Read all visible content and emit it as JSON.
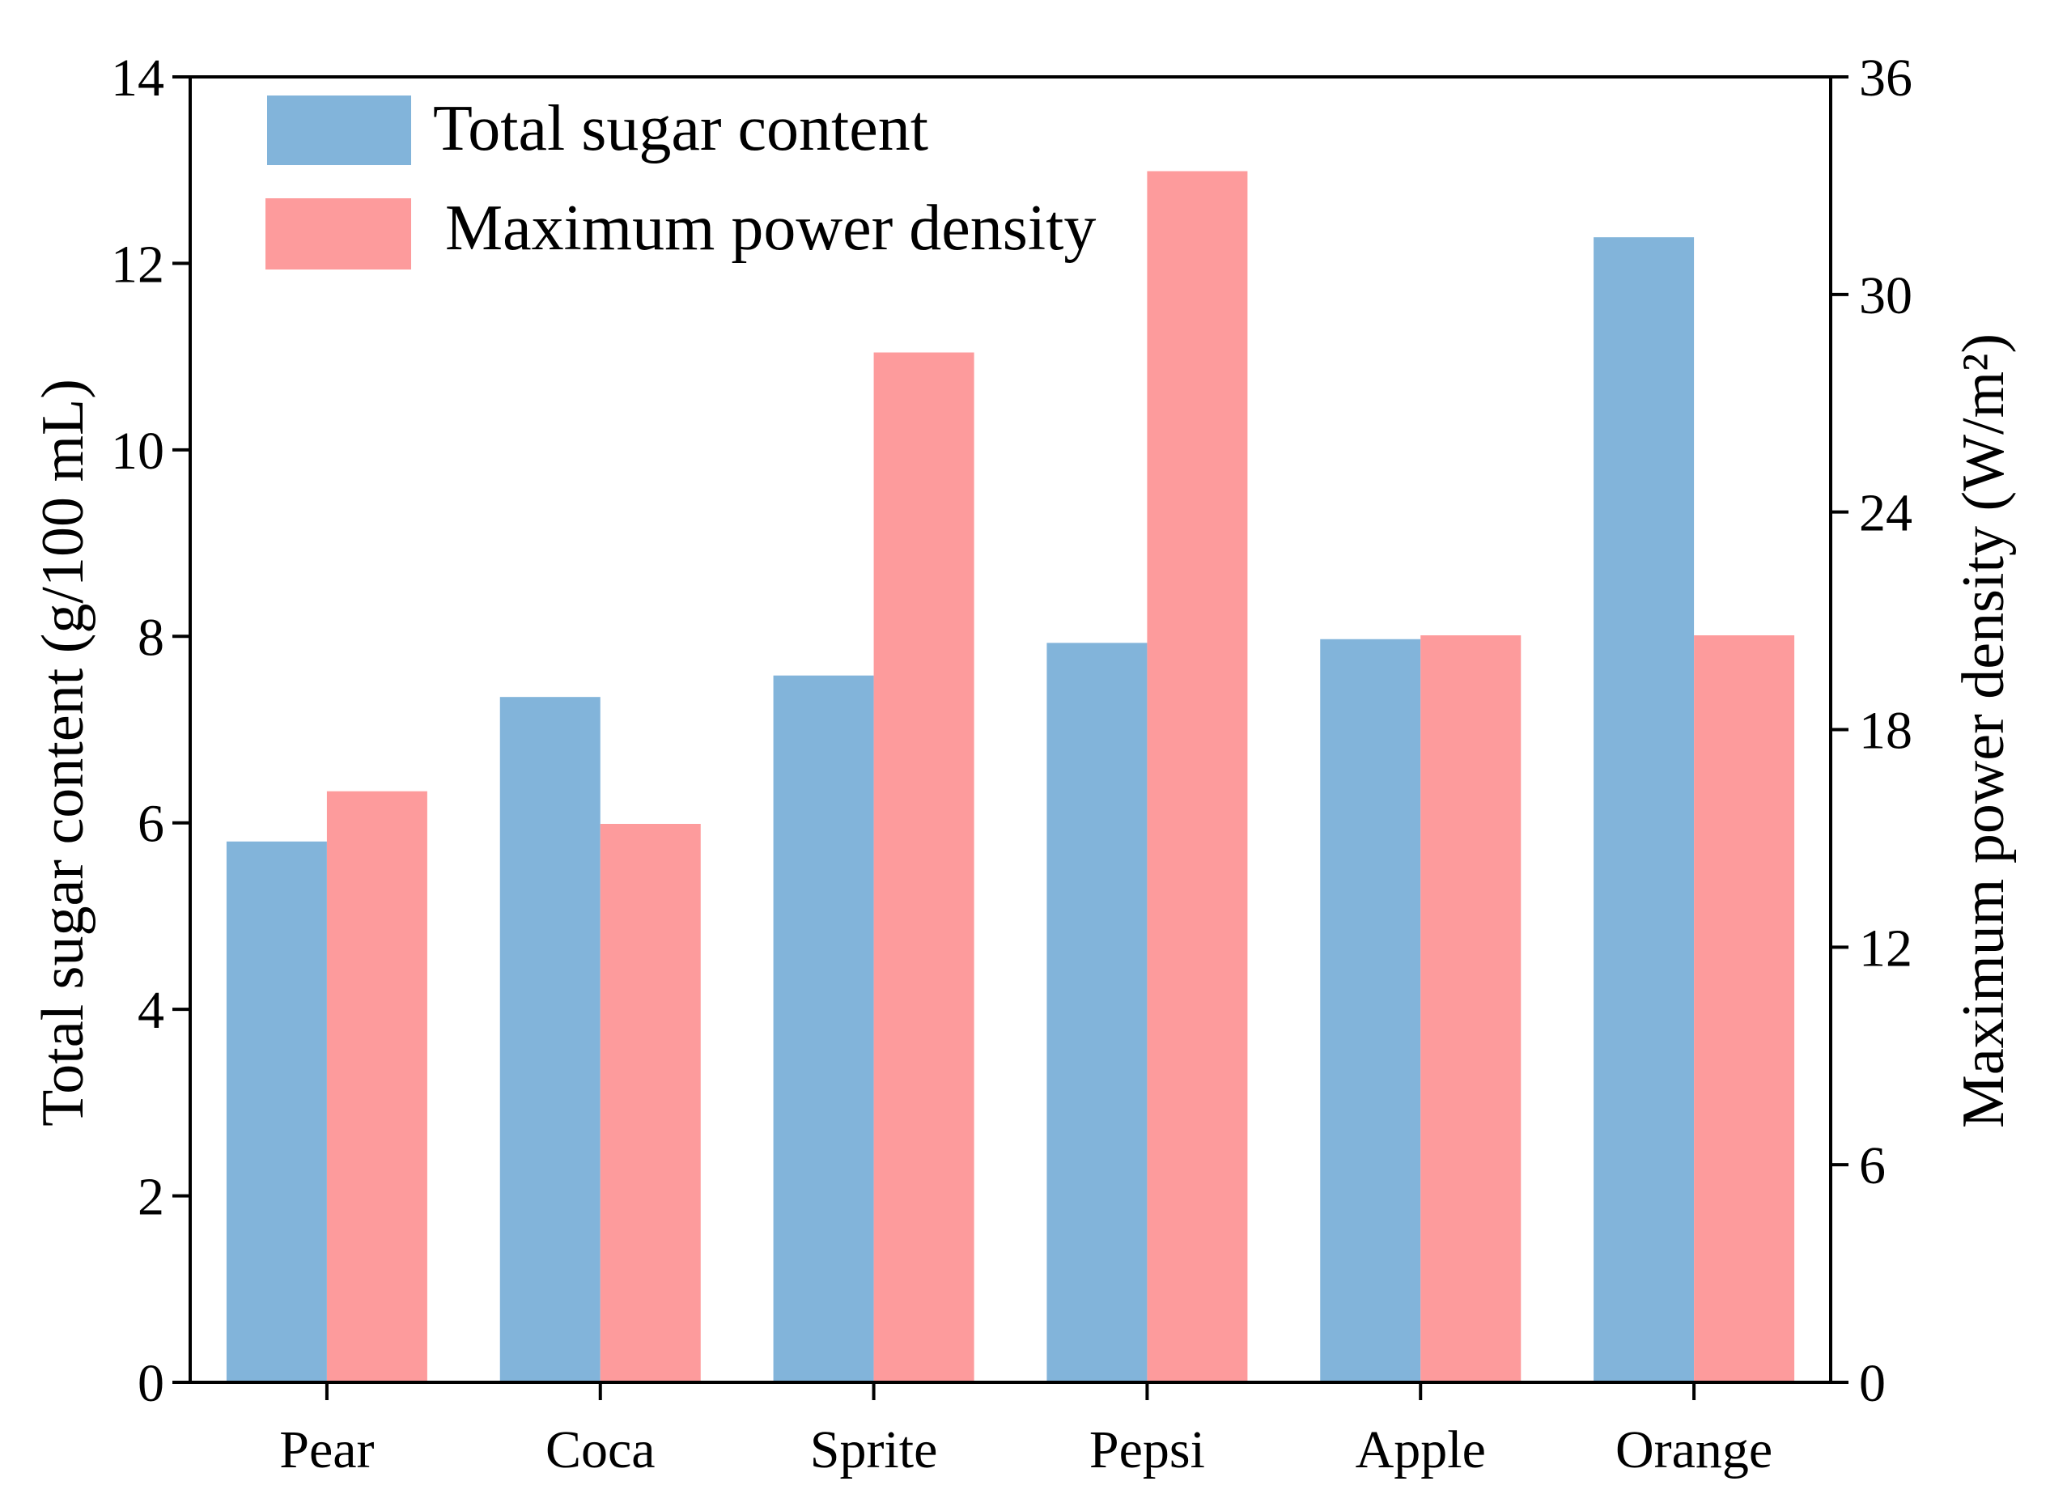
{
  "chart_data": {
    "type": "bar",
    "title": "",
    "categories": [
      "Pear",
      "Coca",
      "Sprite",
      "Pepsi",
      "Apple",
      "Orange"
    ],
    "series": [
      {
        "name": "Total sugar content",
        "axis": "left",
        "color": "#82b4da",
        "values": [
          5.8,
          7.35,
          7.58,
          7.93,
          7.97,
          12.28
        ]
      },
      {
        "name": "Maximum power density",
        "axis": "right",
        "color": "#fd9b9c",
        "values": [
          16.3,
          15.4,
          28.4,
          33.4,
          20.6,
          20.6
        ]
      }
    ],
    "ylabel": "Total sugar content (g/100 mL)",
    "ylabel_right": "Maximum power density (W/m²)",
    "ylim": [
      0,
      14
    ],
    "ylim_right": [
      0,
      36
    ],
    "yticks": [
      "0",
      "2",
      "4",
      "6",
      "8",
      "10",
      "12",
      "14"
    ],
    "yticks_right": [
      "0",
      "6",
      "12",
      "18",
      "24",
      "30",
      "36"
    ],
    "legend_position": "top-left"
  }
}
